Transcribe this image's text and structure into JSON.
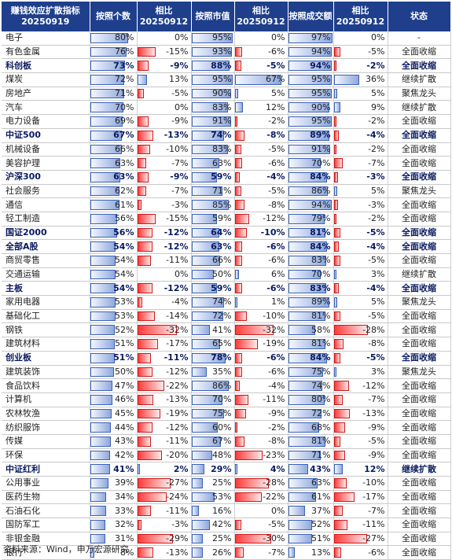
{
  "headers": {
    "c0": "赚钱效应扩散指标",
    "c0b": "20250919",
    "c1": "按照个数",
    "c2": "相比",
    "c2b": "20250912",
    "c3": "按照市值",
    "c4": "相比",
    "c4b": "20250912",
    "c5": "按照成交额",
    "c6": "相比",
    "c6b": "20250912",
    "c7": "状态"
  },
  "rows": [
    {
      "name": "电子",
      "bold": false,
      "count": "80%",
      "countv": 80,
      "dc": "0%",
      "dcv": 0,
      "mv": "95%",
      "mvv": 95,
      "dm": "0%",
      "dmv": 0,
      "amt": "97%",
      "amtv": 97,
      "da": "0%",
      "dav": 0,
      "status": "-"
    },
    {
      "name": "有色金属",
      "bold": false,
      "count": "76%",
      "countv": 76,
      "dc": "-15%",
      "dcv": -15,
      "mv": "93%",
      "mvv": 93,
      "dm": "-6%",
      "dmv": -6,
      "amt": "94%",
      "amtv": 94,
      "da": "-5%",
      "dav": -5,
      "status": "全面收缩"
    },
    {
      "name": "科创板",
      "bold": true,
      "count": "73%",
      "countv": 73,
      "dc": "-9%",
      "dcv": -9,
      "mv": "88%",
      "mvv": 88,
      "dm": "-5%",
      "dmv": -5,
      "amt": "94%",
      "amtv": 94,
      "da": "-2%",
      "dav": -2,
      "status": "全面收缩"
    },
    {
      "name": "煤炭",
      "bold": false,
      "count": "72%",
      "countv": 72,
      "dc": "13%",
      "dcv": 13,
      "mv": "95%",
      "mvv": 95,
      "dm": "67%",
      "dmv": 67,
      "amt": "95%",
      "amtv": 95,
      "da": "36%",
      "dav": 36,
      "status": "继续扩散"
    },
    {
      "name": "房地产",
      "bold": false,
      "count": "71%",
      "countv": 71,
      "dc": "-5%",
      "dcv": -5,
      "mv": "90%",
      "mvv": 90,
      "dm": "5%",
      "dmv": 5,
      "amt": "95%",
      "amtv": 95,
      "da": "5%",
      "dav": 5,
      "status": "聚焦龙头"
    },
    {
      "name": "汽车",
      "bold": false,
      "count": "70%",
      "countv": 70,
      "dc": "0%",
      "dcv": 0,
      "mv": "83%",
      "mvv": 83,
      "dm": "12%",
      "dmv": 12,
      "amt": "90%",
      "amtv": 90,
      "da": "9%",
      "dav": 9,
      "status": "继续扩散"
    },
    {
      "name": "电力设备",
      "bold": false,
      "count": "69%",
      "countv": 69,
      "dc": "-9%",
      "dcv": -9,
      "mv": "91%",
      "mvv": 91,
      "dm": "-2%",
      "dmv": -2,
      "amt": "95%",
      "amtv": 95,
      "da": "-2%",
      "dav": -2,
      "status": "全面收缩"
    },
    {
      "name": "中证500",
      "bold": true,
      "count": "67%",
      "countv": 67,
      "dc": "-13%",
      "dcv": -13,
      "mv": "74%",
      "mvv": 74,
      "dm": "-8%",
      "dmv": -8,
      "amt": "89%",
      "amtv": 89,
      "da": "-4%",
      "dav": -4,
      "status": "全面收缩"
    },
    {
      "name": "机械设备",
      "bold": false,
      "count": "66%",
      "countv": 66,
      "dc": "-10%",
      "dcv": -10,
      "mv": "83%",
      "mvv": 83,
      "dm": "-5%",
      "dmv": -5,
      "amt": "91%",
      "amtv": 91,
      "da": "-2%",
      "dav": -2,
      "status": "全面收缩"
    },
    {
      "name": "美容护理",
      "bold": false,
      "count": "63%",
      "countv": 63,
      "dc": "-7%",
      "dcv": -7,
      "mv": "63%",
      "mvv": 63,
      "dm": "-6%",
      "dmv": -6,
      "amt": "70%",
      "amtv": 70,
      "da": "-7%",
      "dav": -7,
      "status": "全面收缩"
    },
    {
      "name": "沪深300",
      "bold": true,
      "count": "63%",
      "countv": 63,
      "dc": "-9%",
      "dcv": -9,
      "mv": "59%",
      "mvv": 59,
      "dm": "-4%",
      "dmv": -4,
      "amt": "84%",
      "amtv": 84,
      "da": "-3%",
      "dav": -3,
      "status": "全面收缩"
    },
    {
      "name": "社会服务",
      "bold": false,
      "count": "62%",
      "countv": 62,
      "dc": "-7%",
      "dcv": -7,
      "mv": "71%",
      "mvv": 71,
      "dm": "-5%",
      "dmv": -5,
      "amt": "86%",
      "amtv": 86,
      "da": "5%",
      "dav": 5,
      "status": "聚焦龙头"
    },
    {
      "name": "通信",
      "bold": false,
      "count": "61%",
      "countv": 61,
      "dc": "-3%",
      "dcv": -3,
      "mv": "85%",
      "mvv": 85,
      "dm": "-8%",
      "dmv": -8,
      "amt": "94%",
      "amtv": 94,
      "da": "-3%",
      "dav": -3,
      "status": "全面收缩"
    },
    {
      "name": "轻工制造",
      "bold": false,
      "count": "56%",
      "countv": 56,
      "dc": "-15%",
      "dcv": -15,
      "mv": "59%",
      "mvv": 59,
      "dm": "-12%",
      "dmv": -12,
      "amt": "79%",
      "amtv": 79,
      "da": "-2%",
      "dav": -2,
      "status": "全面收缩"
    },
    {
      "name": "国证2000",
      "bold": true,
      "count": "56%",
      "countv": 56,
      "dc": "-12%",
      "dcv": -12,
      "mv": "64%",
      "mvv": 64,
      "dm": "-10%",
      "dmv": -10,
      "amt": "81%",
      "amtv": 81,
      "da": "-5%",
      "dav": -5,
      "status": "全面收缩"
    },
    {
      "name": "全部A股",
      "bold": true,
      "count": "54%",
      "countv": 54,
      "dc": "-12%",
      "dcv": -12,
      "mv": "63%",
      "mvv": 63,
      "dm": "-6%",
      "dmv": -6,
      "amt": "84%",
      "amtv": 84,
      "da": "-4%",
      "dav": -4,
      "status": "全面收缩"
    },
    {
      "name": "商贸零售",
      "bold": false,
      "count": "54%",
      "countv": 54,
      "dc": "-11%",
      "dcv": -11,
      "mv": "66%",
      "mvv": 66,
      "dm": "-6%",
      "dmv": -6,
      "amt": "83%",
      "amtv": 83,
      "da": "-5%",
      "dav": -5,
      "status": "全面收缩"
    },
    {
      "name": "交通运输",
      "bold": false,
      "count": "54%",
      "countv": 54,
      "dc": "0%",
      "dcv": 0,
      "mv": "50%",
      "mvv": 50,
      "dm": "6%",
      "dmv": 6,
      "amt": "70%",
      "amtv": 70,
      "da": "3%",
      "dav": 3,
      "status": "继续扩散"
    },
    {
      "name": "主板",
      "bold": true,
      "count": "54%",
      "countv": 54,
      "dc": "-12%",
      "dcv": -12,
      "mv": "59%",
      "mvv": 59,
      "dm": "-6%",
      "dmv": -6,
      "amt": "83%",
      "amtv": 83,
      "da": "-4%",
      "dav": -4,
      "status": "全面收缩"
    },
    {
      "name": "家用电器",
      "bold": false,
      "count": "53%",
      "countv": 53,
      "dc": "-4%",
      "dcv": -4,
      "mv": "74%",
      "mvv": 74,
      "dm": "1%",
      "dmv": 1,
      "amt": "89%",
      "amtv": 89,
      "da": "5%",
      "dav": 5,
      "status": "聚焦龙头"
    },
    {
      "name": "基础化工",
      "bold": false,
      "count": "53%",
      "countv": 53,
      "dc": "-14%",
      "dcv": -14,
      "mv": "72%",
      "mvv": 72,
      "dm": "-10%",
      "dmv": -10,
      "amt": "81%",
      "amtv": 81,
      "da": "-5%",
      "dav": -5,
      "status": "全面收缩"
    },
    {
      "name": "钢铁",
      "bold": false,
      "count": "52%",
      "countv": 52,
      "dc": "-32%",
      "dcv": -32,
      "mv": "41%",
      "mvv": 41,
      "dm": "-32%",
      "dmv": -32,
      "amt": "58%",
      "amtv": 58,
      "da": "-28%",
      "dav": -28,
      "status": "全面收缩"
    },
    {
      "name": "建筑材料",
      "bold": false,
      "count": "51%",
      "countv": 51,
      "dc": "-17%",
      "dcv": -17,
      "mv": "65%",
      "mvv": 65,
      "dm": "-19%",
      "dmv": -19,
      "amt": "81%",
      "amtv": 81,
      "da": "-8%",
      "dav": -8,
      "status": "全面收缩"
    },
    {
      "name": "创业板",
      "bold": true,
      "count": "51%",
      "countv": 51,
      "dc": "-11%",
      "dcv": -11,
      "mv": "78%",
      "mvv": 78,
      "dm": "-6%",
      "dmv": -6,
      "amt": "84%",
      "amtv": 84,
      "da": "-5%",
      "dav": -5,
      "status": "全面收缩"
    },
    {
      "name": "建筑装饰",
      "bold": false,
      "count": "50%",
      "countv": 50,
      "dc": "-12%",
      "dcv": -12,
      "mv": "35%",
      "mvv": 35,
      "dm": "-6%",
      "dmv": -6,
      "amt": "75%",
      "amtv": 75,
      "da": "3%",
      "dav": 3,
      "status": "聚焦龙头"
    },
    {
      "name": "食品饮料",
      "bold": false,
      "count": "47%",
      "countv": 47,
      "dc": "-22%",
      "dcv": -22,
      "mv": "86%",
      "mvv": 86,
      "dm": "-4%",
      "dmv": -4,
      "amt": "74%",
      "amtv": 74,
      "da": "-12%",
      "dav": -12,
      "status": "全面收缩"
    },
    {
      "name": "计算机",
      "bold": false,
      "count": "46%",
      "countv": 46,
      "dc": "-13%",
      "dcv": -13,
      "mv": "70%",
      "mvv": 70,
      "dm": "-11%",
      "dmv": -11,
      "amt": "80%",
      "amtv": 80,
      "da": "-7%",
      "dav": -7,
      "status": "全面收缩"
    },
    {
      "name": "农林牧渔",
      "bold": false,
      "count": "45%",
      "countv": 45,
      "dc": "-19%",
      "dcv": -19,
      "mv": "75%",
      "mvv": 75,
      "dm": "-9%",
      "dmv": -9,
      "amt": "72%",
      "amtv": 72,
      "da": "-13%",
      "dav": -13,
      "status": "全面收缩"
    },
    {
      "name": "纺织服饰",
      "bold": false,
      "count": "44%",
      "countv": 44,
      "dc": "-12%",
      "dcv": -12,
      "mv": "60%",
      "mvv": 60,
      "dm": "-2%",
      "dmv": -2,
      "amt": "68%",
      "amtv": 68,
      "da": "-9%",
      "dav": -9,
      "status": "全面收缩"
    },
    {
      "name": "传媒",
      "bold": false,
      "count": "43%",
      "countv": 43,
      "dc": "-11%",
      "dcv": -11,
      "mv": "67%",
      "mvv": 67,
      "dm": "-8%",
      "dmv": -8,
      "amt": "81%",
      "amtv": 81,
      "da": "-5%",
      "dav": -5,
      "status": "全面收缩"
    },
    {
      "name": "环保",
      "bold": false,
      "count": "42%",
      "countv": 42,
      "dc": "-20%",
      "dcv": -20,
      "mv": "48%",
      "mvv": 48,
      "dm": "-23%",
      "dmv": -23,
      "amt": "71%",
      "amtv": 71,
      "da": "-9%",
      "dav": -9,
      "status": "全面收缩"
    },
    {
      "name": "中证红利",
      "bold": true,
      "count": "41%",
      "countv": 41,
      "dc": "2%",
      "dcv": 2,
      "mv": "29%",
      "mvv": 29,
      "dm": "4%",
      "dmv": 4,
      "amt": "43%",
      "amtv": 43,
      "da": "12%",
      "dav": 12,
      "status": "继续扩散"
    },
    {
      "name": "公用事业",
      "bold": false,
      "count": "39%",
      "countv": 39,
      "dc": "-27%",
      "dcv": -27,
      "mv": "25%",
      "mvv": 25,
      "dm": "-28%",
      "dmv": -28,
      "amt": "63%",
      "amtv": 63,
      "da": "-10%",
      "dav": -10,
      "status": "全面收缩"
    },
    {
      "name": "医药生物",
      "bold": false,
      "count": "34%",
      "countv": 34,
      "dc": "-24%",
      "dcv": -24,
      "mv": "53%",
      "mvv": 53,
      "dm": "-22%",
      "dmv": -22,
      "amt": "61%",
      "amtv": 61,
      "da": "-17%",
      "dav": -17,
      "status": "全面收缩"
    },
    {
      "name": "石油石化",
      "bold": false,
      "count": "33%",
      "countv": 33,
      "dc": "-11%",
      "dcv": -11,
      "mv": "16%",
      "mvv": 16,
      "dm": "0%",
      "dmv": 0,
      "amt": "37%",
      "amtv": 37,
      "da": "-7%",
      "dav": -7,
      "status": "全面收缩"
    },
    {
      "name": "国防军工",
      "bold": false,
      "count": "32%",
      "countv": 32,
      "dc": "-3%",
      "dcv": -3,
      "mv": "42%",
      "mvv": 42,
      "dm": "-5%",
      "dmv": -5,
      "amt": "52%",
      "amtv": 52,
      "da": "-11%",
      "dav": -11,
      "status": "全面收缩"
    },
    {
      "name": "非银金融",
      "bold": false,
      "count": "31%",
      "countv": 31,
      "dc": "-29%",
      "dcv": -29,
      "mv": "25%",
      "mvv": 25,
      "dm": "-30%",
      "dmv": -30,
      "amt": "51%",
      "amtv": 51,
      "da": "-27%",
      "dav": -27,
      "status": "全面收缩"
    },
    {
      "name": "银行",
      "bold": false,
      "count": "8%",
      "countv": 8,
      "dc": "-13%",
      "dcv": -13,
      "mv": "26%",
      "mvv": 26,
      "dm": "-7%",
      "dmv": -7,
      "amt": "13%",
      "amtv": 13,
      "da": "-6%",
      "dav": -6,
      "status": "全面收缩"
    }
  ],
  "footer": "资料来源：Wind，申万宏源研究",
  "colors": {
    "header_bg": "#1f3f8c",
    "bar_blue": "#3a62b8",
    "bar_red": "#d01818"
  }
}
